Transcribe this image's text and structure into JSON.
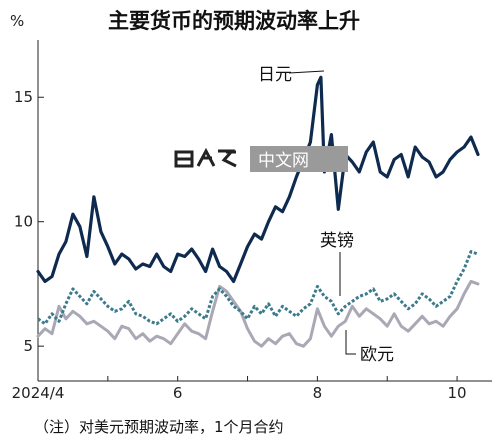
{
  "chart_data": {
    "type": "line",
    "title": "主要货币的预期波动率上升",
    "unit_label": "%",
    "note": "（注）对美元预期波动率，1个月合约",
    "x_tick_labels": [
      "2024/4",
      "6",
      "8",
      "10"
    ],
    "x_tick_months": [
      4,
      6,
      8,
      10
    ],
    "xlim": [
      4.0,
      10.5
    ],
    "ylim": [
      3.6,
      17.3
    ],
    "y_ticks": [
      5,
      10,
      15
    ],
    "grid": false,
    "series": [
      {
        "name": "日元",
        "color": "#0f2a4f",
        "style": "solid",
        "x": [
          4.0,
          4.1,
          4.2,
          4.3,
          4.4,
          4.5,
          4.6,
          4.7,
          4.8,
          4.9,
          5.0,
          5.1,
          5.2,
          5.3,
          5.4,
          5.5,
          5.6,
          5.7,
          5.8,
          5.9,
          6.0,
          6.1,
          6.2,
          6.3,
          6.4,
          6.5,
          6.6,
          6.7,
          6.8,
          6.9,
          7.0,
          7.1,
          7.2,
          7.3,
          7.4,
          7.5,
          7.6,
          7.7,
          7.8,
          7.9,
          8.0,
          8.05,
          8.1,
          8.2,
          8.3,
          8.4,
          8.5,
          8.6,
          8.7,
          8.8,
          8.9,
          9.0,
          9.1,
          9.2,
          9.3,
          9.4,
          9.5,
          9.6,
          9.7,
          9.8,
          9.9,
          10.0,
          10.1,
          10.2,
          10.3
        ],
        "y": [
          8.0,
          7.6,
          7.8,
          8.7,
          9.2,
          10.3,
          9.8,
          8.6,
          11.0,
          9.6,
          9.0,
          8.3,
          8.7,
          8.5,
          8.1,
          8.3,
          8.2,
          8.7,
          8.2,
          8.0,
          8.7,
          8.6,
          8.9,
          8.5,
          8.0,
          8.9,
          8.2,
          8.0,
          7.6,
          8.3,
          9.0,
          9.5,
          9.3,
          10.0,
          10.6,
          10.4,
          11.0,
          11.8,
          12.5,
          13.2,
          15.5,
          15.8,
          12.0,
          13.5,
          10.5,
          12.7,
          12.4,
          12.0,
          12.8,
          13.2,
          12.0,
          11.8,
          12.5,
          12.7,
          11.8,
          13.0,
          12.6,
          12.4,
          11.8,
          12.0,
          12.5,
          12.8,
          13.0,
          13.4,
          12.7
        ]
      },
      {
        "name": "英镑",
        "color": "#3d7a8c",
        "style": "dotted",
        "x": [
          4.0,
          4.1,
          4.2,
          4.3,
          4.4,
          4.5,
          4.6,
          4.7,
          4.8,
          4.9,
          5.0,
          5.1,
          5.2,
          5.3,
          5.4,
          5.5,
          5.6,
          5.7,
          5.8,
          5.9,
          6.0,
          6.1,
          6.2,
          6.3,
          6.4,
          6.5,
          6.6,
          6.7,
          6.8,
          6.9,
          7.0,
          7.1,
          7.2,
          7.3,
          7.4,
          7.5,
          7.6,
          7.7,
          7.8,
          7.9,
          8.0,
          8.1,
          8.2,
          8.3,
          8.4,
          8.5,
          8.6,
          8.7,
          8.8,
          8.9,
          9.0,
          9.1,
          9.2,
          9.3,
          9.4,
          9.5,
          9.6,
          9.7,
          9.8,
          9.9,
          10.0,
          10.1,
          10.2,
          10.3
        ],
        "y": [
          6.1,
          5.9,
          6.3,
          6.0,
          6.7,
          7.3,
          7.0,
          6.7,
          7.2,
          6.9,
          6.6,
          6.4,
          6.5,
          6.8,
          6.3,
          6.2,
          6.0,
          5.9,
          6.1,
          6.3,
          6.0,
          6.2,
          6.5,
          6.3,
          6.1,
          7.0,
          7.3,
          7.0,
          6.6,
          6.4,
          6.1,
          6.6,
          6.3,
          6.7,
          6.2,
          6.6,
          6.4,
          6.2,
          6.5,
          6.7,
          7.4,
          7.0,
          6.8,
          6.3,
          6.6,
          6.8,
          7.0,
          7.1,
          7.3,
          6.8,
          6.9,
          7.1,
          6.8,
          6.5,
          6.7,
          7.1,
          6.9,
          6.6,
          6.8,
          7.0,
          7.6,
          8.1,
          8.8,
          8.7
        ]
      },
      {
        "name": "欧元",
        "color": "#a9a9b6",
        "style": "solid",
        "x": [
          4.0,
          4.1,
          4.2,
          4.3,
          4.4,
          4.5,
          4.6,
          4.7,
          4.8,
          4.9,
          5.0,
          5.1,
          5.2,
          5.3,
          5.4,
          5.5,
          5.6,
          5.7,
          5.8,
          5.9,
          6.0,
          6.1,
          6.2,
          6.3,
          6.4,
          6.5,
          6.6,
          6.7,
          6.8,
          6.9,
          7.0,
          7.1,
          7.2,
          7.3,
          7.4,
          7.5,
          7.6,
          7.7,
          7.8,
          7.9,
          8.0,
          8.1,
          8.2,
          8.3,
          8.4,
          8.5,
          8.6,
          8.7,
          8.8,
          8.9,
          9.0,
          9.1,
          9.2,
          9.3,
          9.4,
          9.5,
          9.6,
          9.7,
          9.8,
          9.9,
          10.0,
          10.1,
          10.2,
          10.3
        ],
        "y": [
          5.4,
          5.7,
          5.5,
          6.6,
          6.1,
          6.4,
          6.2,
          5.9,
          6.0,
          5.8,
          5.6,
          5.3,
          5.8,
          5.7,
          5.3,
          5.5,
          5.2,
          5.4,
          5.3,
          5.1,
          5.5,
          5.9,
          5.6,
          5.5,
          5.3,
          6.4,
          7.4,
          7.2,
          6.8,
          6.4,
          5.7,
          5.2,
          5.0,
          5.3,
          5.1,
          5.4,
          5.5,
          5.1,
          5.0,
          5.3,
          6.5,
          5.8,
          5.4,
          5.8,
          6.0,
          6.6,
          6.2,
          6.5,
          6.3,
          6.1,
          5.8,
          6.3,
          5.8,
          5.6,
          5.9,
          6.2,
          5.9,
          6.0,
          5.8,
          6.2,
          6.5,
          7.1,
          7.6,
          7.5
        ]
      }
    ]
  }
}
